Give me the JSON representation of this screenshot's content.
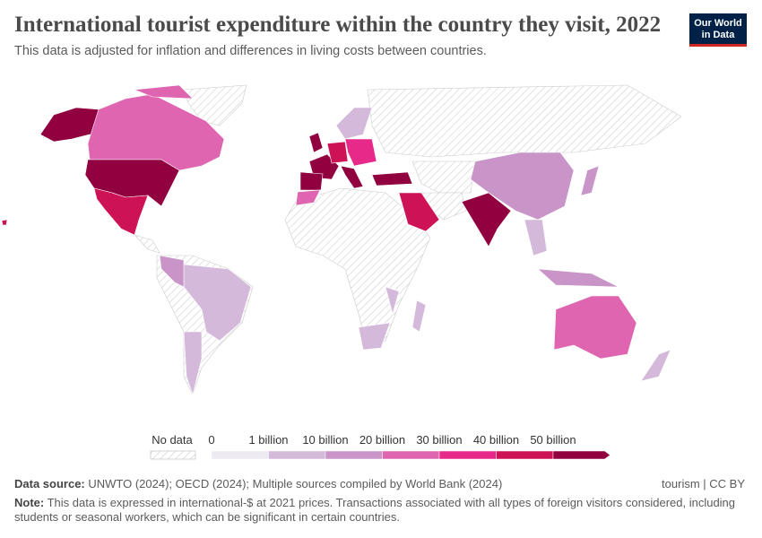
{
  "header": {
    "title": "International tourist expenditure within the country they visit, 2022",
    "subtitle": "This data is adjusted for inflation and differences in living costs between countries.",
    "logo": [
      "Our World",
      "in Data"
    ]
  },
  "legend": {
    "no_data_label": "No data",
    "bins": [
      {
        "label": "0",
        "color": "#eeeaf3"
      },
      {
        "label": "1 billion",
        "color": "#d4b9da"
      },
      {
        "label": "10 billion",
        "color": "#c994c7"
      },
      {
        "label": "20 billion",
        "color": "#df65b0"
      },
      {
        "label": "30 billion",
        "color": "#e7298a"
      },
      {
        "label": "40 billion",
        "color": "#ce1256"
      },
      {
        "label": "50 billion",
        "color": "#91003f"
      }
    ]
  },
  "footer": {
    "source_label": "Data source:",
    "source": "UNWTO (2024); OECD (2024); Multiple sources compiled by World Bank (2024)",
    "license": "tourism | CC BY",
    "note_label": "Note:",
    "note": "This data is expressed in international-$ at 2021 prices. Transactions associated with all types of foreign visitors considered, including students or seasonal workers, which can be significant in certain countries."
  }
}
